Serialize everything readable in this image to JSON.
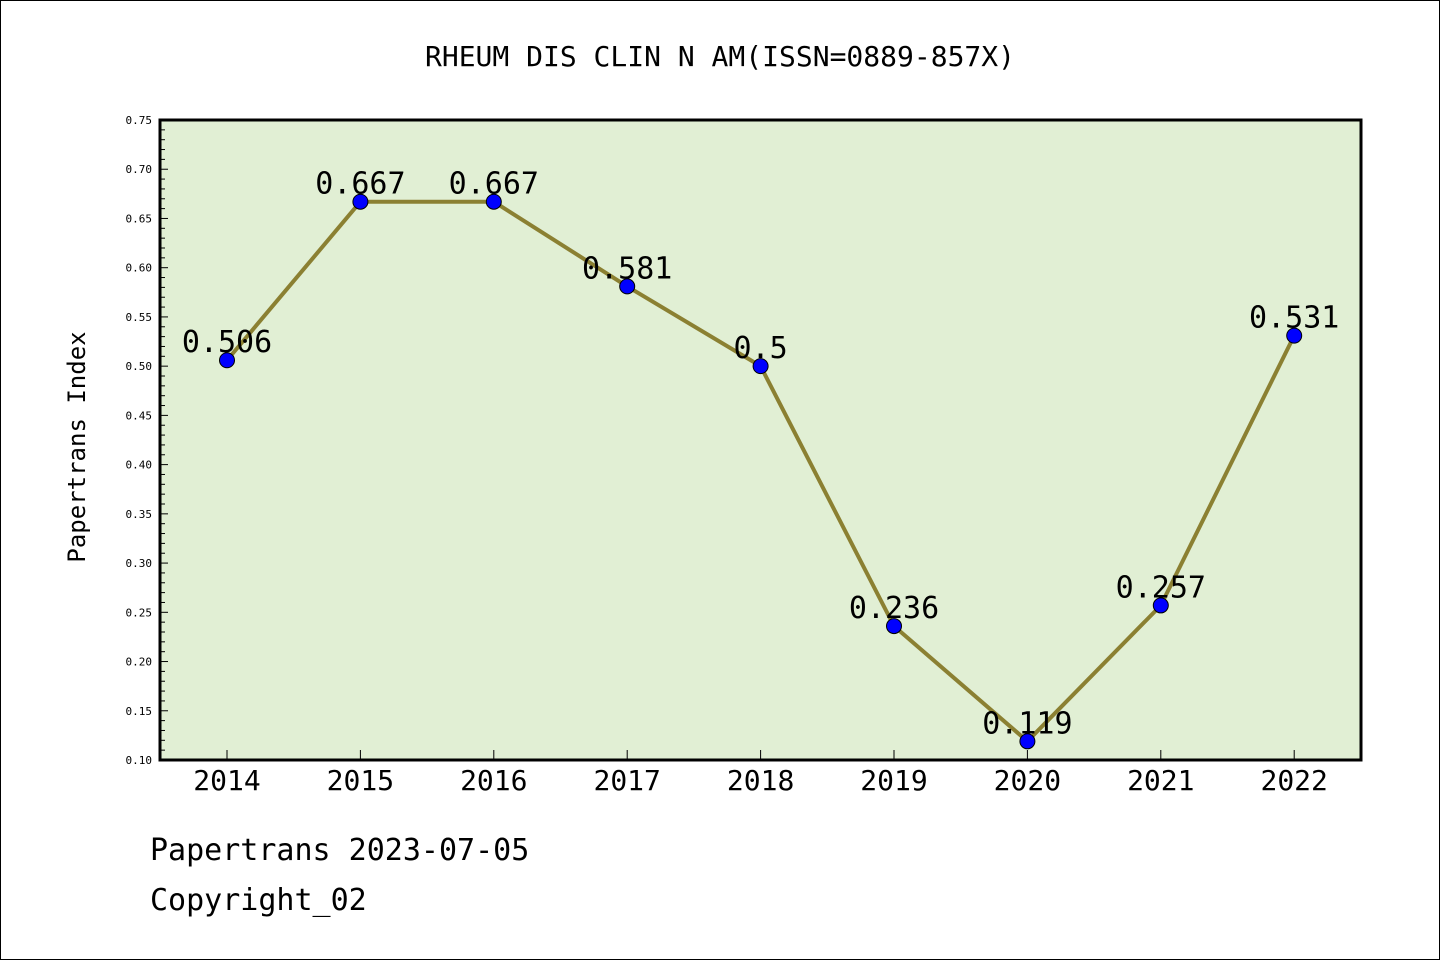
{
  "chart_data": {
    "type": "line",
    "title": "RHEUM DIS CLIN N AM(ISSN=0889-857X)",
    "xlabel": "",
    "ylabel": "Papertrans Index",
    "categories": [
      "2014",
      "2015",
      "2016",
      "2017",
      "2018",
      "2019",
      "2020",
      "2021",
      "2022"
    ],
    "values": [
      0.506,
      0.667,
      0.667,
      0.581,
      0.5,
      0.236,
      0.119,
      0.257,
      0.531
    ],
    "data_labels": [
      "0.506",
      "0.667",
      "0.667",
      "0.581",
      "0.5",
      "0.236",
      "0.119",
      "0.257",
      "0.531"
    ],
    "ylim": [
      0.1,
      0.75
    ],
    "yticks": [
      "0.10",
      "0.15",
      "0.20",
      "0.25",
      "0.30",
      "0.35",
      "0.40",
      "0.45",
      "0.50",
      "0.55",
      "0.60",
      "0.65",
      "0.70",
      "0.75"
    ],
    "grid": false,
    "colors": {
      "plot_background": "#e1efd4",
      "line": "#8b8032",
      "marker": "#0000ff"
    }
  },
  "footer": {
    "line1": "Papertrans 2023-07-05",
    "line2": "Copyright_02"
  }
}
